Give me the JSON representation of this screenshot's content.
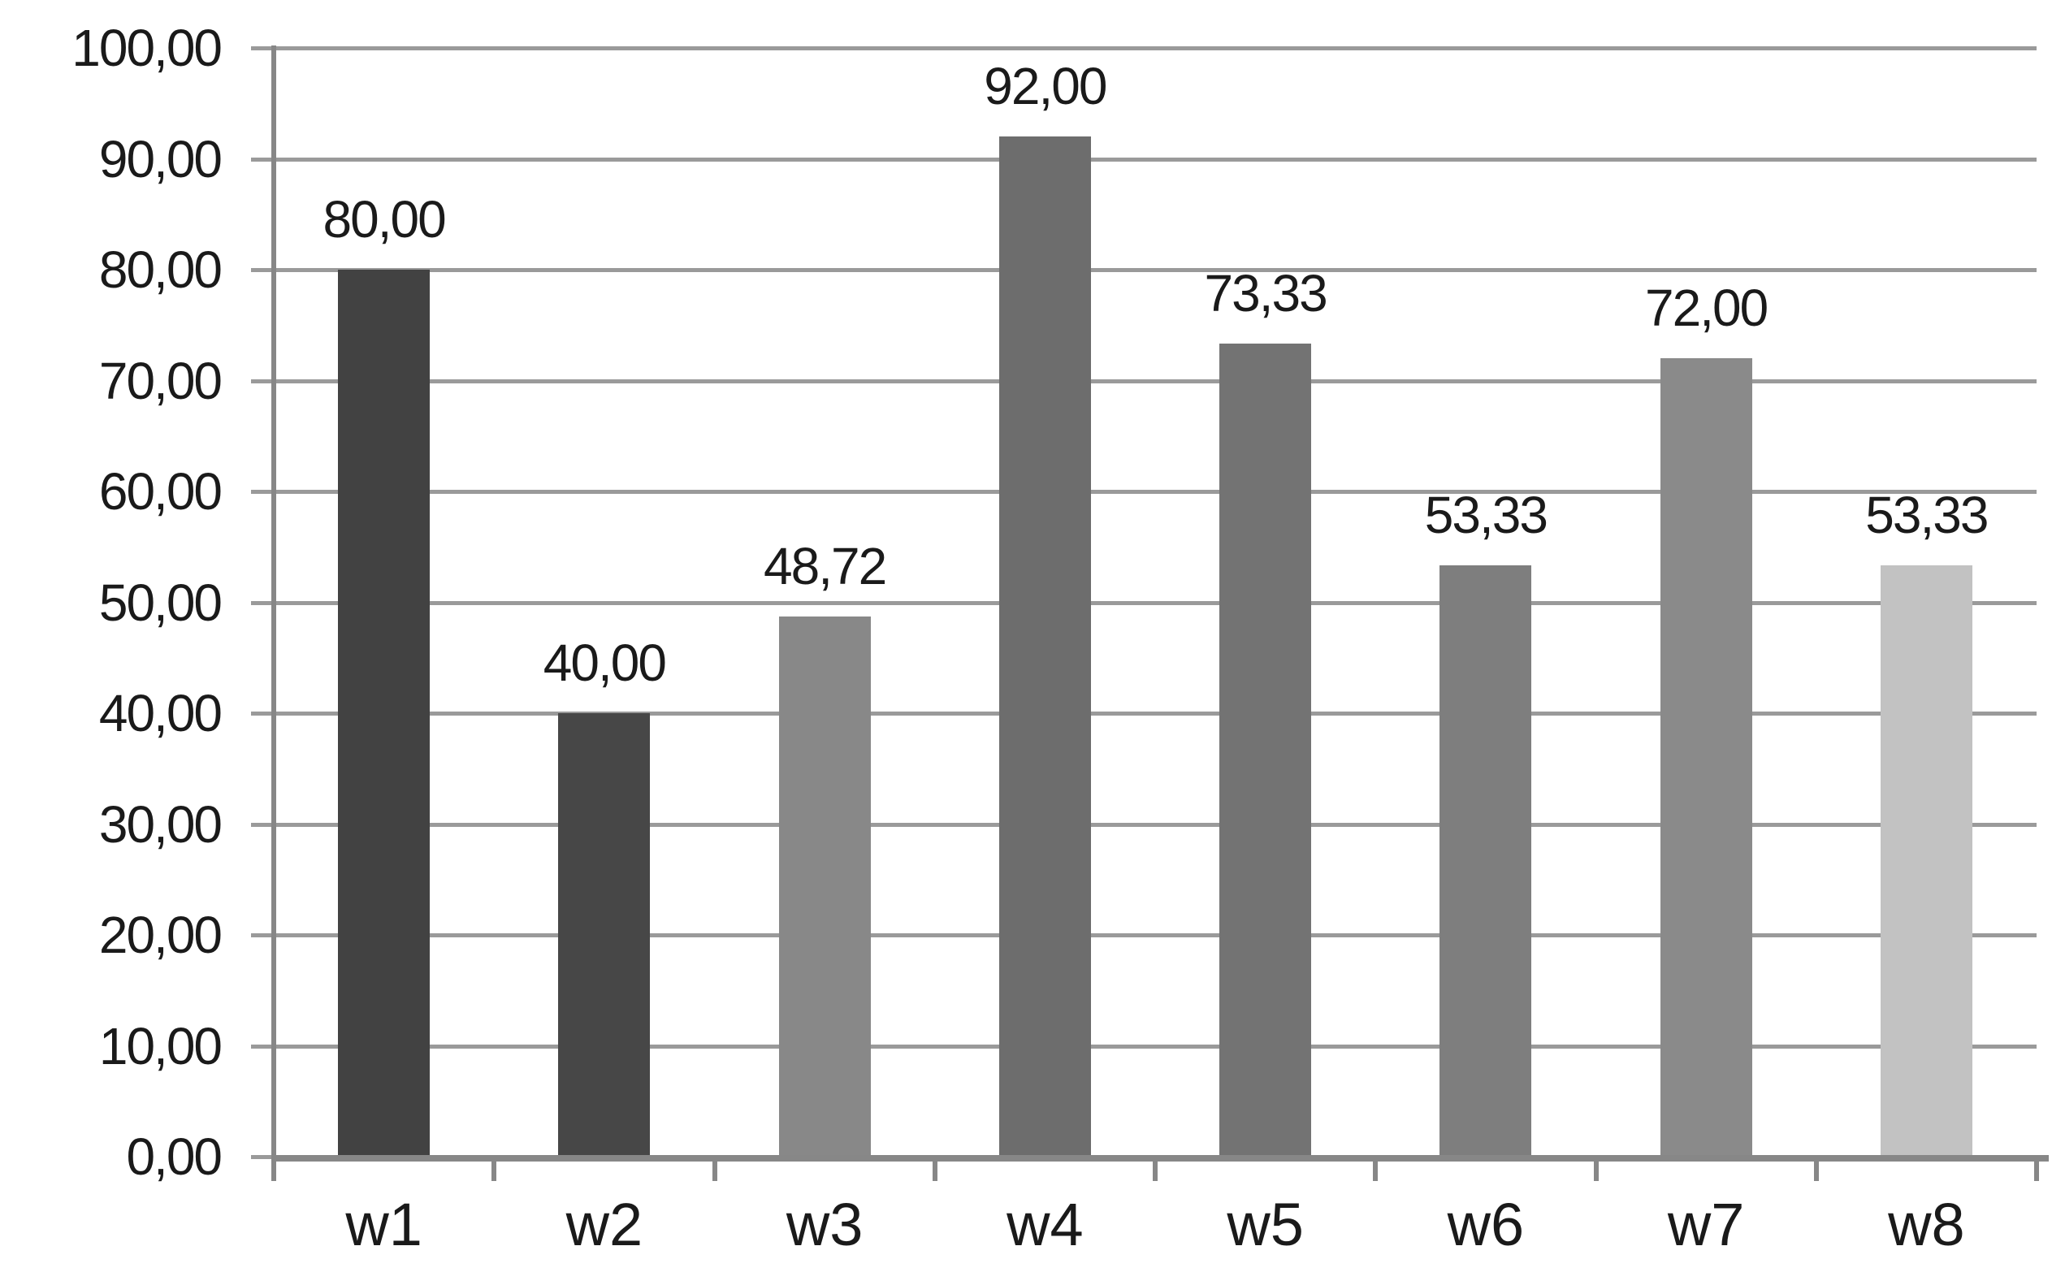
{
  "chart_data": {
    "type": "bar",
    "title": "",
    "xlabel": "",
    "ylabel": "",
    "categories": [
      "w1",
      "w2",
      "w3",
      "w4",
      "w5",
      "w6",
      "w7",
      "w8"
    ],
    "values": [
      80.0,
      40.0,
      48.72,
      92.0,
      73.33,
      53.33,
      72.0,
      53.33
    ],
    "value_labels": [
      "80,00",
      "40,00",
      "48,72",
      "92,00",
      "73,33",
      "53,33",
      "72,00",
      "53,33"
    ],
    "y_ticks": [
      0,
      10,
      20,
      30,
      40,
      50,
      60,
      70,
      80,
      90,
      100
    ],
    "y_tick_labels": [
      "0,00",
      "10,00",
      "20,00",
      "30,00",
      "40,00",
      "50,00",
      "60,00",
      "70,00",
      "80,00",
      "90,00",
      "100,00"
    ],
    "ylim": [
      0,
      100
    ],
    "decimal_separator": ",",
    "grid": "horizontal",
    "legend_position": "none",
    "bar_colors": [
      "#424242",
      "#474747",
      "#888888",
      "#6d6d6d",
      "#737373",
      "#7e7e7e",
      "#8a8a8a",
      "#c2c2c2"
    ],
    "gridline_color": "#9a9a9a",
    "axis_color": "#878787",
    "text_color": "#1a1a1a",
    "background_color": "#ffffff"
  }
}
